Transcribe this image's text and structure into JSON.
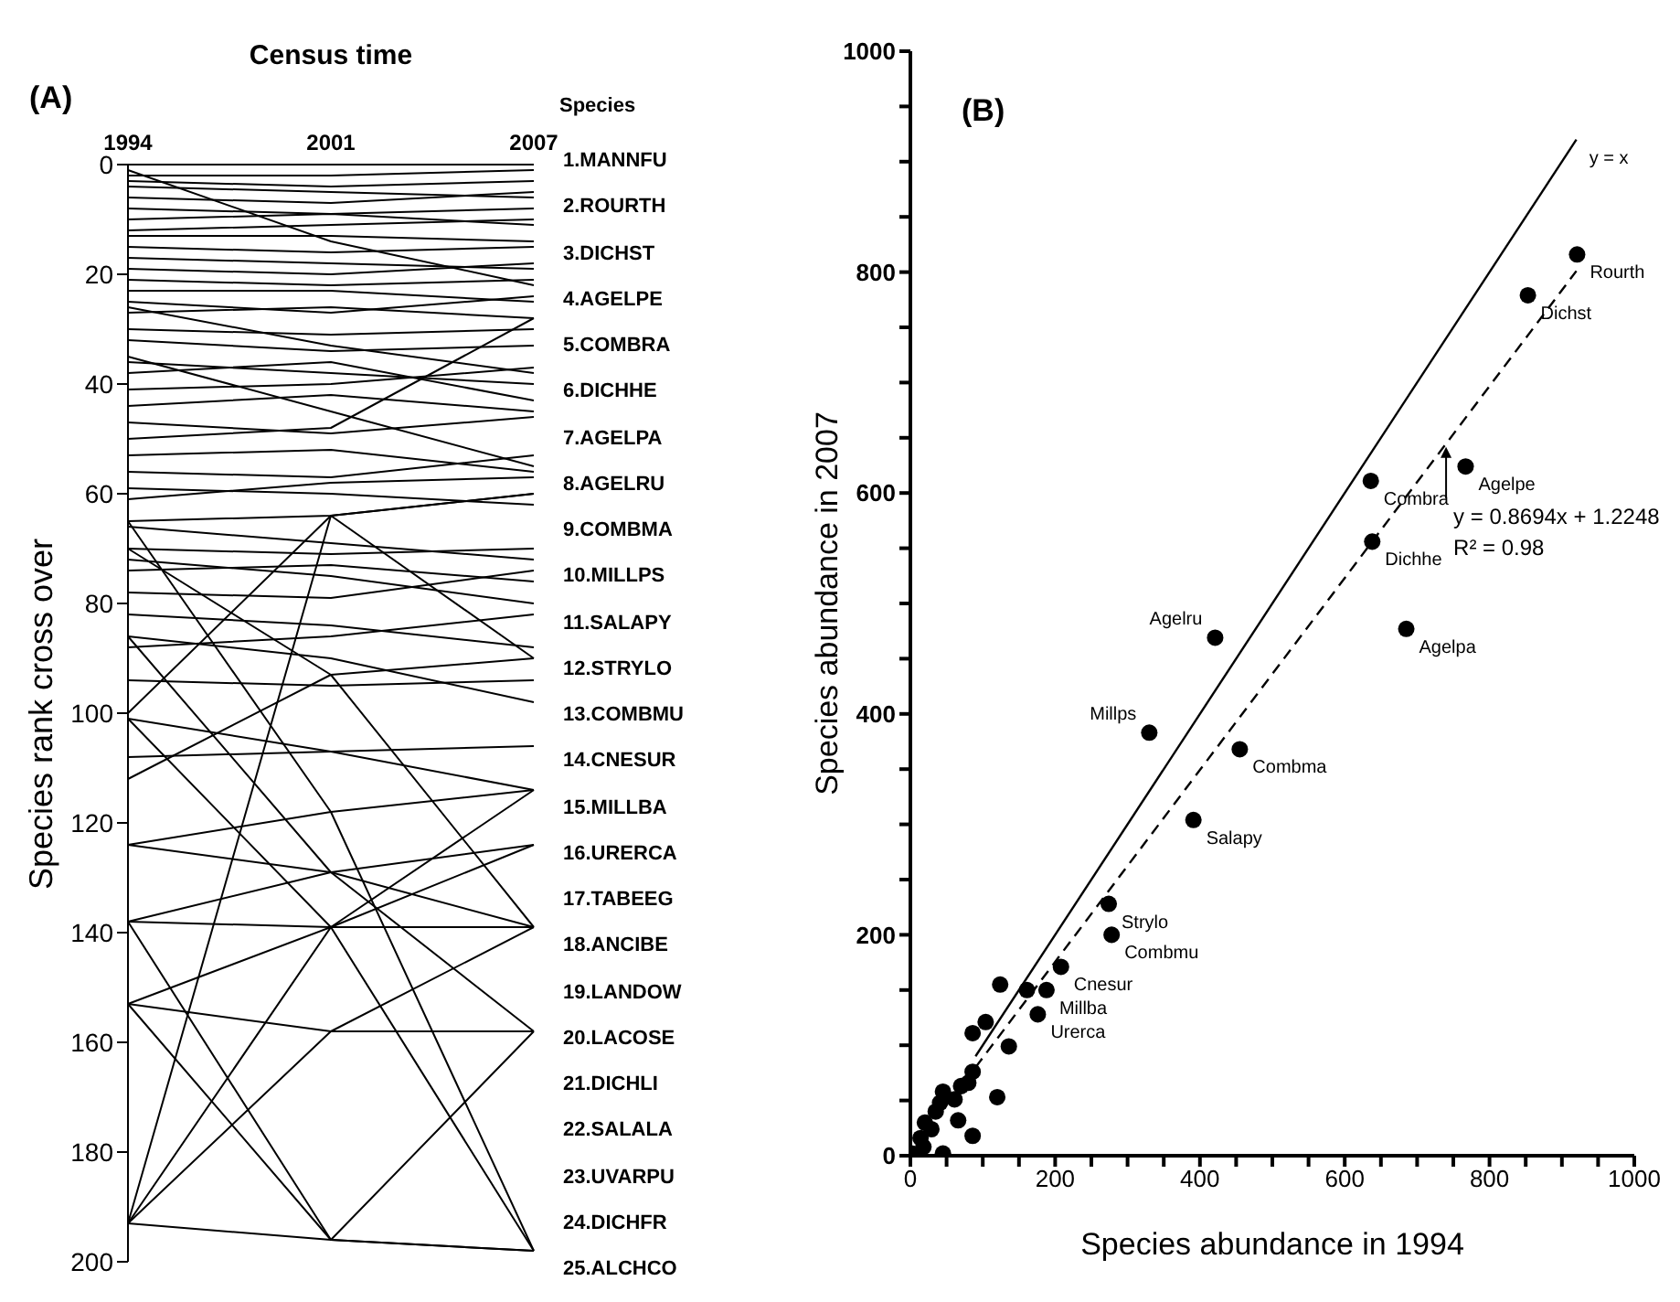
{
  "chart_data": [
    {
      "type": "line",
      "title": "(A)",
      "xlabel": "Census time",
      "ylabel": "Species rank cross over",
      "categories": [
        "1994",
        "2001",
        "2007"
      ],
      "ylim": [
        200,
        0
      ],
      "yticks": [
        0,
        20,
        40,
        60,
        80,
        100,
        120,
        140,
        160,
        180,
        200
      ],
      "annotations": [
        "Species",
        "1.MANNFU",
        "2.ROURTH",
        "3.DICHST",
        "4.AGELPE",
        "5.COMBRA",
        "6.DICHHE",
        "7.AGELPA",
        "8.AGELRU",
        "9.COMBMA",
        "10.MILLPS",
        "11.SALAPY",
        "12.STRYLO",
        "13.COMBMU",
        "14.CNESUR",
        "15.MILLBA",
        "16.URERCA",
        "17.TABEEG",
        "18.ANCIBE",
        "19.LANDOW",
        "20.LACOSE",
        "21.DICHLI",
        "22.SALALA",
        "23.UVARPU",
        "24.DICHFR",
        "25.ALCHCO"
      ],
      "series": [
        {
          "color": "#000000",
          "values": [
            2,
            2,
            1
          ]
        },
        {
          "color": "#000000",
          "values": [
            3,
            4,
            3
          ]
        },
        {
          "color": "#000000",
          "values": [
            4,
            5,
            6
          ]
        },
        {
          "color": "#000000",
          "values": [
            6,
            7,
            5
          ]
        },
        {
          "color": "#000000",
          "values": [
            8,
            9,
            8
          ]
        },
        {
          "color": "#000000",
          "values": [
            10,
            9,
            11
          ]
        },
        {
          "color": "#000000",
          "values": [
            12,
            11,
            10
          ]
        },
        {
          "color": "#000000",
          "values": [
            13,
            13,
            14
          ]
        },
        {
          "color": "#000000",
          "values": [
            15,
            16,
            15
          ]
        },
        {
          "color": "#000000",
          "values": [
            17,
            18,
            19
          ]
        },
        {
          "color": "#000000",
          "values": [
            19,
            20,
            18
          ]
        },
        {
          "color": "#000000",
          "values": [
            21,
            22,
            21
          ]
        },
        {
          "color": "#000000",
          "values": [
            1,
            14,
            22
          ]
        },
        {
          "color": "#000000",
          "values": [
            23,
            23,
            25
          ]
        },
        {
          "color": "#000000",
          "values": [
            25,
            27,
            24
          ]
        },
        {
          "color": "#000000",
          "values": [
            27,
            26,
            28
          ]
        },
        {
          "color": "#000000",
          "values": [
            26,
            33,
            38
          ]
        },
        {
          "color": "#000000",
          "values": [
            30,
            31,
            30
          ]
        },
        {
          "color": "#000000",
          "values": [
            32,
            34,
            33
          ]
        },
        {
          "color": "#000000",
          "values": [
            35,
            45,
            55
          ]
        },
        {
          "color": "#000000",
          "values": [
            36,
            38,
            40
          ]
        },
        {
          "color": "#000000",
          "values": [
            38,
            36,
            43
          ]
        },
        {
          "color": "#000000",
          "values": [
            41,
            40,
            37
          ]
        },
        {
          "color": "#000000",
          "values": [
            44,
            42,
            45
          ]
        },
        {
          "color": "#000000",
          "values": [
            47,
            49,
            46
          ]
        },
        {
          "color": "#000000",
          "values": [
            50,
            48,
            28
          ]
        },
        {
          "color": "#000000",
          "values": [
            53,
            52,
            56
          ]
        },
        {
          "color": "#000000",
          "values": [
            56,
            57,
            53
          ]
        },
        {
          "color": "#000000",
          "values": [
            59,
            60,
            62
          ]
        },
        {
          "color": "#000000",
          "values": [
            61,
            58,
            57
          ]
        },
        {
          "color": "#000000",
          "values": [
            65,
            64,
            60
          ]
        },
        {
          "color": "#000000",
          "values": [
            66,
            69,
            72
          ]
        },
        {
          "color": "#000000",
          "values": [
            70,
            71,
            70
          ]
        },
        {
          "color": "#000000",
          "values": [
            74,
            73,
            76
          ]
        },
        {
          "color": "#000000",
          "values": [
            72,
            75,
            80
          ]
        },
        {
          "color": "#000000",
          "values": [
            78,
            79,
            74
          ]
        },
        {
          "color": "#000000",
          "values": [
            82,
            84,
            88
          ]
        },
        {
          "color": "#000000",
          "values": [
            86,
            90,
            98
          ]
        },
        {
          "color": "#000000",
          "values": [
            88,
            86,
            82
          ]
        },
        {
          "color": "#000000",
          "values": [
            94,
            95,
            94
          ]
        },
        {
          "color": "#000000",
          "values": [
            101,
            107,
            114
          ]
        },
        {
          "color": "#000000",
          "values": [
            108,
            107,
            106
          ]
        },
        {
          "color": "#000000",
          "values": [
            100,
            64,
            60
          ]
        },
        {
          "color": "#000000",
          "values": [
            112,
            93,
            90
          ]
        },
        {
          "color": "#000000",
          "values": [
            124,
            129,
            139
          ]
        },
        {
          "color": "#000000",
          "values": [
            124,
            118,
            114
          ]
        },
        {
          "color": "#000000",
          "values": [
            138,
            139,
            139
          ]
        },
        {
          "color": "#000000",
          "values": [
            138,
            129,
            124
          ]
        },
        {
          "color": "#000000",
          "values": [
            153,
            158,
            158
          ]
        },
        {
          "color": "#000000",
          "values": [
            153,
            139,
            114
          ]
        },
        {
          "color": "#000000",
          "values": [
            153,
            196,
            158
          ]
        },
        {
          "color": "#000000",
          "values": [
            193,
            196,
            198
          ]
        },
        {
          "color": "#000000",
          "values": [
            193,
            158,
            139
          ]
        },
        {
          "color": "#000000",
          "values": [
            193,
            139,
            124
          ]
        },
        {
          "color": "#000000",
          "values": [
            193,
            64,
            90
          ]
        },
        {
          "color": "#000000",
          "values": [
            138,
            196,
            198
          ]
        },
        {
          "color": "#000000",
          "values": [
            65,
            118,
            198
          ]
        },
        {
          "color": "#000000",
          "values": [
            86,
            129,
            158
          ]
        },
        {
          "color": "#000000",
          "values": [
            101,
            139,
            198
          ]
        },
        {
          "color": "#000000",
          "values": [
            70,
            93,
            139
          ]
        }
      ]
    },
    {
      "type": "scatter",
      "title": "(B)",
      "xlabel": "Species abundance in 1994",
      "ylabel": "Species abundance in 2007",
      "xlim": [
        0,
        1000
      ],
      "ylim": [
        0,
        1000
      ],
      "xticks": [
        0,
        {
          "value": 50,
          "label": null
        },
        {
          "value": 100,
          "label": null
        },
        {
          "value": 150,
          "label": null
        },
        200,
        {
          "value": 250,
          "label": null
        },
        {
          "value": 300,
          "label": null
        },
        {
          "value": 350,
          "label": null
        },
        400,
        {
          "value": 450,
          "label": null
        },
        {
          "value": 500,
          "label": null
        },
        {
          "value": 550,
          "label": null
        },
        600,
        {
          "value": 650,
          "label": null
        },
        {
          "value": 700,
          "label": null
        },
        {
          "value": 750,
          "label": null
        },
        800,
        {
          "value": 850,
          "label": null
        },
        {
          "value": 900,
          "label": null
        },
        {
          "value": 950,
          "label": null
        },
        1000
      ],
      "yticks": [
        0,
        {
          "value": 50,
          "label": null
        },
        {
          "value": 100,
          "label": null
        },
        {
          "value": 150,
          "label": null
        },
        200,
        {
          "value": 250,
          "label": null
        },
        {
          "value": 300,
          "label": null
        },
        {
          "value": 350,
          "label": null
        },
        400,
        {
          "value": 450,
          "label": null
        },
        {
          "value": 500,
          "label": null
        },
        {
          "value": 550,
          "label": null
        },
        600,
        {
          "value": 650,
          "label": null
        },
        {
          "value": 700,
          "label": null
        },
        {
          "value": 750,
          "label": null
        },
        800,
        {
          "value": 850,
          "label": null
        },
        {
          "value": 900,
          "label": null
        },
        {
          "value": 950,
          "label": null
        },
        1000
      ],
      "series": [
        {
          "type": "scatter",
          "color": "#000000",
          "marker": "circle",
          "x": [
            921,
            853,
            636,
            767,
            638,
            685,
            421,
            330,
            455,
            391,
            274,
            278,
            208,
            188,
            176,
            124,
            161,
            104,
            86,
            136,
            120,
            86,
            45,
            70,
            66,
            86,
            45,
            29,
            14,
            20,
            35,
            41,
            2,
            18,
            61,
            80
          ],
          "values": [
            816,
            779,
            611,
            624,
            556,
            477,
            469,
            383,
            368,
            304,
            228,
            200,
            171,
            150,
            128,
            155,
            150,
            121,
            111,
            99,
            53,
            76,
            58,
            63,
            32,
            18,
            2,
            24,
            16,
            30,
            40,
            48,
            2,
            8,
            51,
            66
          ]
        },
        {
          "type": "line",
          "color": "#000000",
          "marker": "none",
          "line_style": "solid",
          "x": [
            90,
            920
          ],
          "values": [
            90,
            920
          ]
        },
        {
          "type": "line",
          "color": "#000000",
          "marker": "none",
          "line_style": "dashed",
          "x": [
            90,
            920
          ],
          "values": [
            80,
            801
          ]
        }
      ],
      "annotations": [
        {
          "text": "Rourth",
          "x": 921,
          "y": 816
        },
        {
          "text": "Dichst",
          "x": 853,
          "y": 779
        },
        {
          "text": "Combra",
          "x": 636,
          "y": 611
        },
        {
          "text": "Agelpe",
          "x": 767,
          "y": 624
        },
        {
          "text": "Dichhe",
          "x": 638,
          "y": 556
        },
        {
          "text": "Agelpa",
          "x": 685,
          "y": 477
        },
        {
          "text": "Agelru",
          "x": 421,
          "y": 469
        },
        {
          "text": "Millps",
          "x": 330,
          "y": 383
        },
        {
          "text": "Combma",
          "x": 455,
          "y": 368
        },
        {
          "text": "Salapy",
          "x": 391,
          "y": 304
        },
        {
          "text": "Strylo",
          "x": 274,
          "y": 228
        },
        {
          "text": "Combmu",
          "x": 278,
          "y": 200
        },
        {
          "text": "Cnesur",
          "x": 208,
          "y": 171
        },
        {
          "text": "Millba",
          "x": 188,
          "y": 150
        },
        {
          "text": "Urerca",
          "x": 176,
          "y": 128
        },
        {
          "text": "y = x",
          "x": 920,
          "y": 920
        },
        {
          "text": "y = 0.8694x + 1.2248",
          "x": 740,
          "y": 645
        },
        "R² = 0.98"
      ]
    }
  ]
}
